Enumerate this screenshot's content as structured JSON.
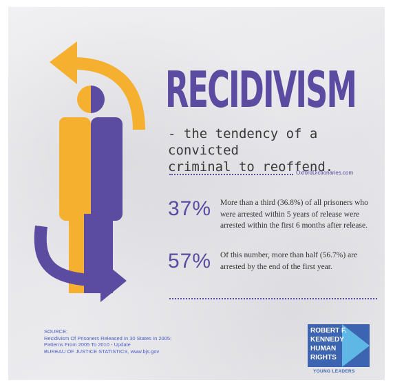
{
  "title": "RECIDIVISM",
  "definition": "- the tendency of a convicted\n  criminal to reoffend.",
  "definition_source": "OxfordDictionaries.com",
  "stats": [
    {
      "percent": "37%",
      "text": "More than a third (36.8%) of all prisoners who were arrested within 5 years of release were arrested within the first 6 months after release."
    },
    {
      "percent": "57%",
      "text": "Of this number, more than half (56.7%) are arrested by the end of the first year."
    }
  ],
  "source": {
    "heading": "SOURCE:",
    "line1": "Recidivism Of Prisoners Released In 30 States In 2005:",
    "line2": "Patterns From 2005 To 2010 - Update",
    "line3": "BUREAU OF JUSTICE STATISTICS, www.bjs.gov"
  },
  "logo": {
    "lines": [
      "ROBERT F.",
      "KENNEDY",
      "HUMAN",
      "RIGHTS"
    ],
    "subtitle": "YOUNG LEADERS"
  },
  "colors": {
    "purple": "#5b4ba1",
    "orange": "#f6b030",
    "rfk_blue": "#3d64b0",
    "rfk_light": "#5fb7e5"
  }
}
